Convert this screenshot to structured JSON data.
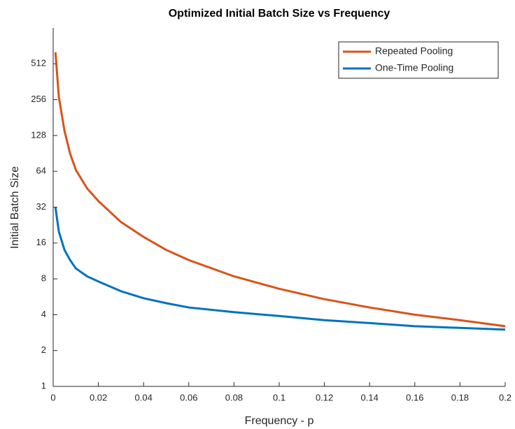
{
  "chart_data": {
    "type": "line",
    "title": "Optimized Initial Batch Size vs Frequency",
    "x_label": "Frequency - p",
    "y_label": "Initial Batch Size",
    "x": [
      0.001,
      0.0025,
      0.005,
      0.0075,
      0.01,
      0.015,
      0.02,
      0.03,
      0.04,
      0.05,
      0.06,
      0.08,
      0.1,
      0.12,
      0.14,
      0.16,
      0.18,
      0.2
    ],
    "series": [
      {
        "name": "Repeated Pooling",
        "color": "#d95319",
        "values": [
          640,
          270,
          140,
          90,
          66,
          46,
          36,
          24,
          18,
          14,
          11.5,
          8.4,
          6.6,
          5.4,
          4.6,
          4.0,
          3.6,
          3.2
        ]
      },
      {
        "name": "One-Time Pooling",
        "color": "#0072bd",
        "values": [
          32,
          20,
          14,
          11.5,
          9.8,
          8.4,
          7.6,
          6.3,
          5.5,
          5.0,
          4.6,
          4.2,
          3.9,
          3.6,
          3.4,
          3.2,
          3.1,
          3.0
        ]
      }
    ],
    "xlim": [
      0,
      0.2
    ],
    "xticks": [
      0,
      0.02,
      0.04,
      0.06,
      0.08,
      0.1,
      0.12,
      0.14,
      0.16,
      0.18,
      0.2
    ],
    "ylim": [
      1,
      1024
    ],
    "yticks": [
      1,
      2,
      4,
      8,
      16,
      32,
      64,
      128,
      256,
      512
    ],
    "y_scale": "log",
    "legend": "upper right"
  }
}
